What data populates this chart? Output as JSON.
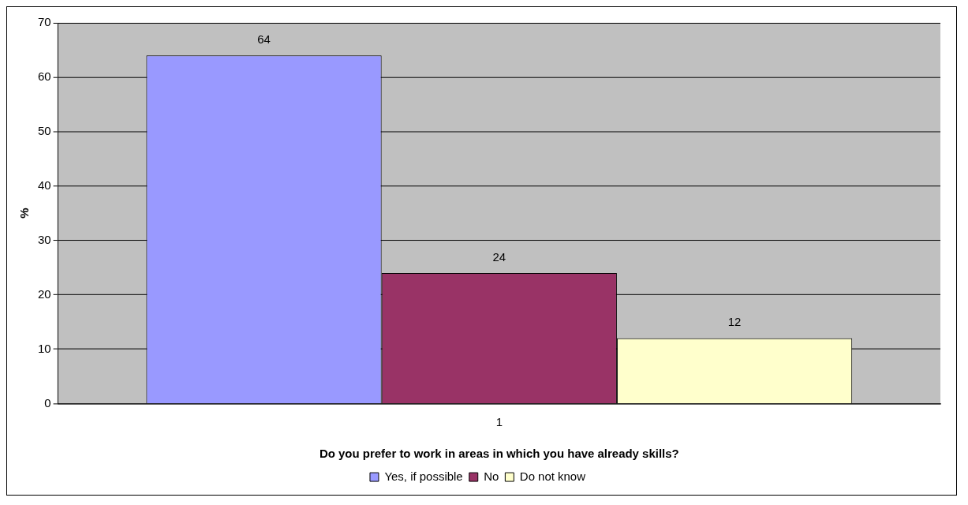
{
  "chart_data": {
    "type": "bar",
    "xlabel": "Do you prefer to work in areas in which you have already skills?",
    "ylabel": "%",
    "categories": [
      "1"
    ],
    "series": [
      {
        "name": "Yes, if possible",
        "color": "#9999ff",
        "values": [
          64
        ]
      },
      {
        "name": "No",
        "color": "#993366",
        "values": [
          24
        ]
      },
      {
        "name": "Do not know",
        "color": "#ffffcc",
        "values": [
          12
        ]
      }
    ],
    "ylim": [
      0,
      70
    ],
    "yticks": [
      0,
      10,
      20,
      30,
      40,
      50,
      60,
      70
    ],
    "grid": "y",
    "legend": "bottom",
    "data_labels": true
  }
}
